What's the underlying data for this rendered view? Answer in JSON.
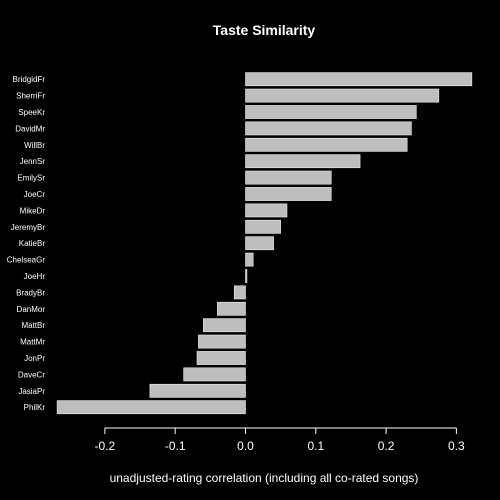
{
  "chart_data": {
    "type": "bar",
    "orientation": "horizontal",
    "title": "Taste Similarity",
    "xlabel": "unadjusted-rating correlation (including all co-rated songs)",
    "ylabel": "",
    "xlim": [
      -0.28,
      0.32
    ],
    "xticks": [
      -0.2,
      -0.1,
      0.0,
      0.1,
      0.2,
      0.3
    ],
    "xtick_labels": [
      "-0.2",
      "-0.1",
      "0.0",
      "0.1",
      "0.2",
      "0.3"
    ],
    "bar_color": "#bebebe",
    "background": "#000000",
    "categories": [
      "BridgidFr",
      "SherriFr",
      "SpeeKr",
      "DavidMr",
      "WillBr",
      "JennSr",
      "EmilySr",
      "JoeCr",
      "MikeDr",
      "JeremyBr",
      "KatieBr",
      "ChelseaGr",
      "JoeHr",
      "BradyBr",
      "DanMor",
      "MattBr",
      "MattMr",
      "JonPr",
      "DaveCr",
      "JasiaPr",
      "PhilKr"
    ],
    "values": [
      0.322,
      0.275,
      0.243,
      0.236,
      0.23,
      0.163,
      0.122,
      0.122,
      0.059,
      0.05,
      0.04,
      0.011,
      0.002,
      -0.016,
      -0.04,
      -0.06,
      -0.067,
      -0.069,
      -0.088,
      -0.136,
      -0.268
    ]
  }
}
